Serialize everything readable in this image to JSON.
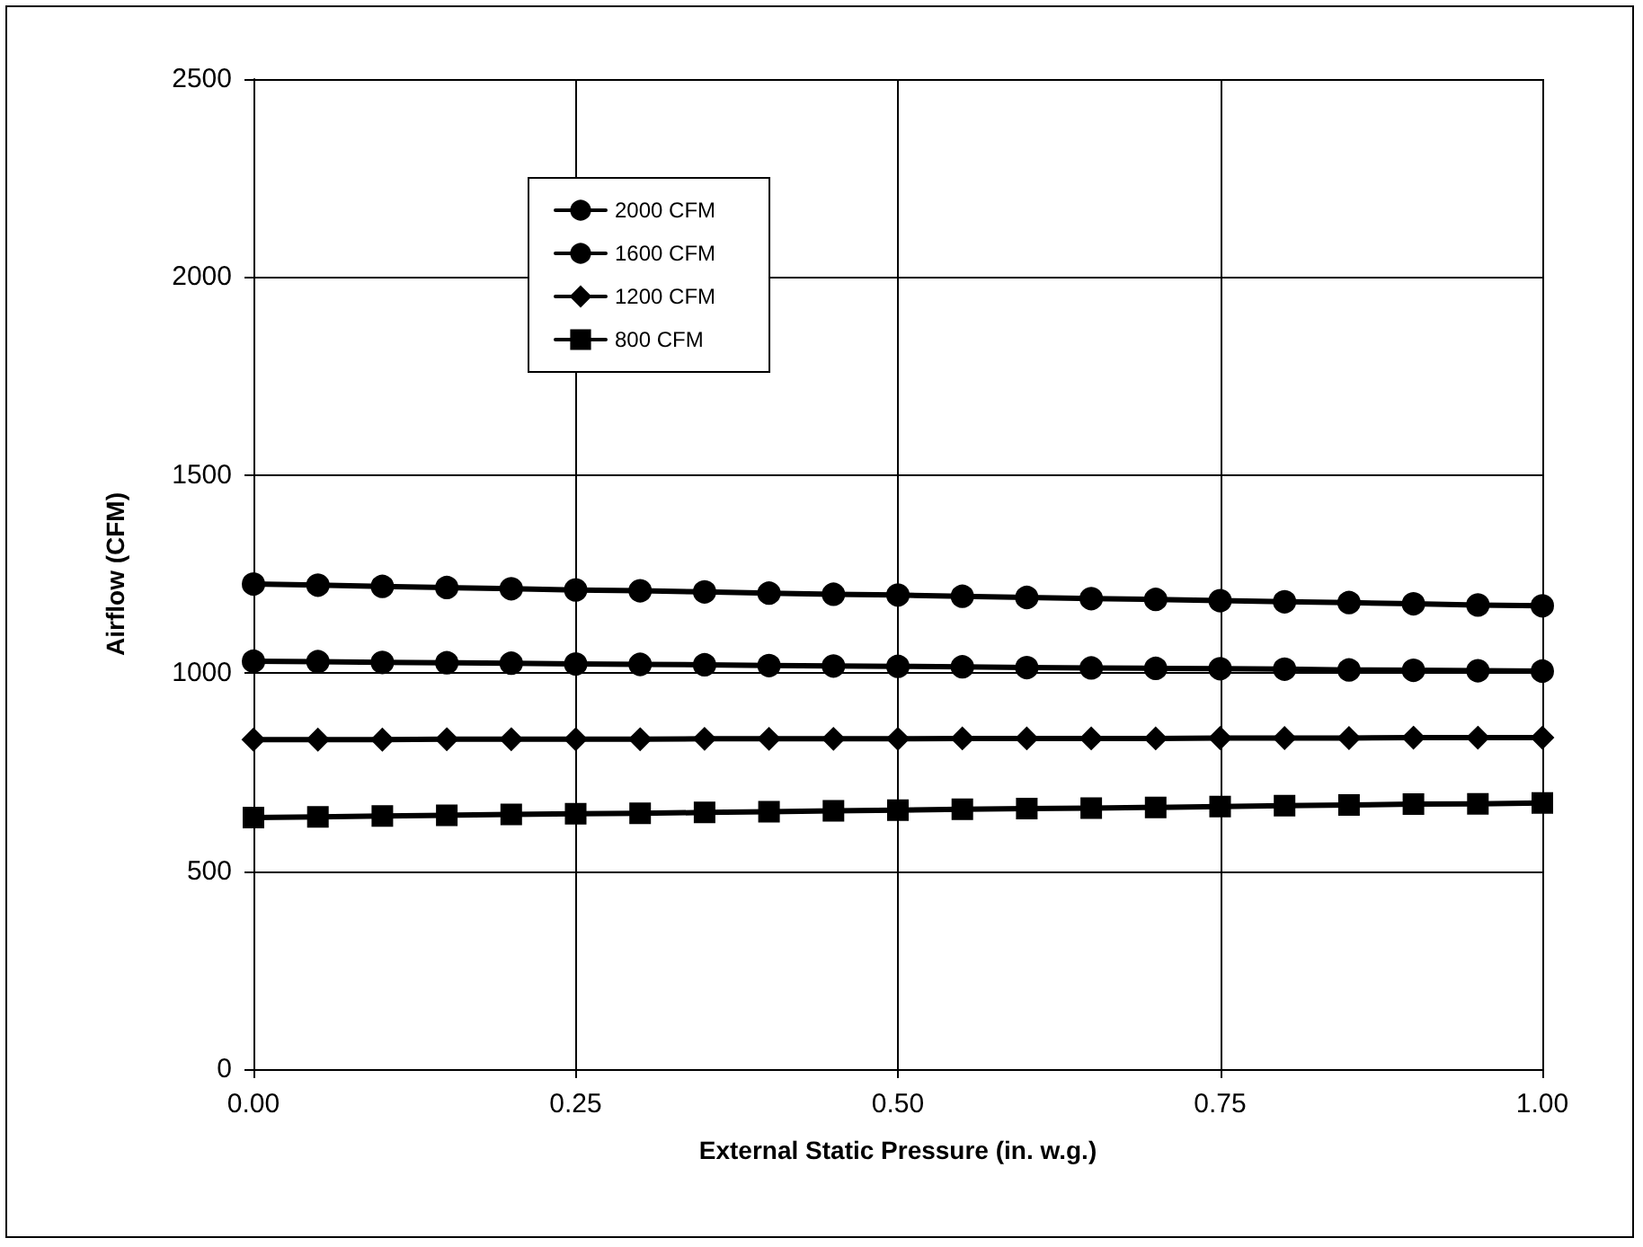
{
  "chart_data": {
    "type": "line",
    "xlabel": "External Static Pressure (in. w.g.)",
    "ylabel": "Airflow (CFM)",
    "x": [
      0,
      0.05,
      0.1,
      0.15,
      0.2,
      0.25,
      0.3,
      0.35,
      0.4,
      0.45,
      0.5,
      0.55,
      0.6,
      0.65,
      0.7,
      0.75,
      0.8,
      0.85,
      0.9,
      0.95,
      1
    ],
    "series": [
      {
        "name": "2000 CFM",
        "color": "#000000",
        "marker": "circle",
        "values": [
          1225,
          1222,
          1219,
          1216,
          1213,
          1210,
          1208,
          1205,
          1202,
          1199,
          1197,
          1194,
          1191,
          1188,
          1186,
          1183,
          1180,
          1178,
          1175,
          1172,
          1170
        ]
      },
      {
        "name": "1600 CFM",
        "color": "#000000",
        "marker": "circle",
        "values": [
          1030,
          1029,
          1027,
          1026,
          1025,
          1023,
          1022,
          1021,
          1019,
          1018,
          1017,
          1016,
          1014,
          1013,
          1012,
          1011,
          1010,
          1008,
          1007,
          1006,
          1005
        ]
      },
      {
        "name": "1200 CFM",
        "color": "#000000",
        "marker": "diamond",
        "values": [
          832,
          832,
          832,
          833,
          833,
          833,
          833,
          834,
          834,
          834,
          834,
          835,
          835,
          835,
          835,
          836,
          836,
          836,
          837,
          837,
          837
        ]
      },
      {
        "name": "800 CFM",
        "color": "#000000",
        "marker": "square",
        "values": [
          635,
          637,
          639,
          641,
          643,
          645,
          646,
          648,
          650,
          652,
          654,
          656,
          658,
          659,
          661,
          663,
          665,
          667,
          669,
          670,
          672
        ]
      }
    ],
    "xlim": [
      0,
      1
    ],
    "xticks": [
      {
        "value": 0,
        "label": "0.00"
      },
      {
        "value": 0.25,
        "label": "0.25"
      },
      {
        "value": 0.5,
        "label": "0.50"
      },
      {
        "value": 0.75,
        "label": "0.75"
      },
      {
        "value": 1,
        "label": "1.00"
      }
    ],
    "ylim": [
      0,
      2500
    ],
    "yticks": [
      0,
      500,
      1000,
      1500,
      2000,
      2500
    ],
    "grid": true,
    "legend": "top left",
    "line_style": "solid"
  }
}
